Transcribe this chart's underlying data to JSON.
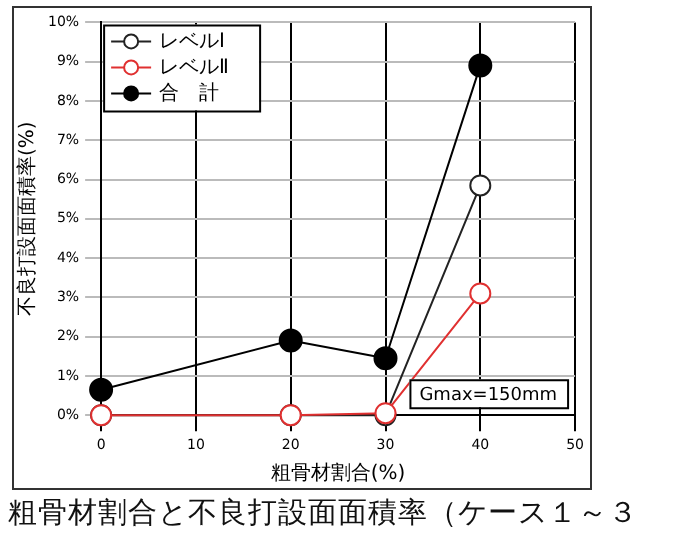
{
  "chart_data": {
    "type": "line",
    "xlabel": "粗骨材割合(%)",
    "ylabel": "不良打設面面積率(%)",
    "x": [
      0,
      20,
      30,
      40
    ],
    "series": [
      {
        "name": "レベルⅠ",
        "color": "#222222",
        "values": [
          0,
          0,
          0,
          5.85
        ]
      },
      {
        "name": "レベルⅡ",
        "color": "#e03030",
        "values": [
          0,
          0,
          0.05,
          3.1
        ]
      },
      {
        "name": "合　計",
        "color": "#000000",
        "values": [
          0.65,
          1.9,
          1.45,
          8.9
        ]
      }
    ],
    "xlim": [
      0,
      50
    ],
    "xticks": [
      0,
      10,
      20,
      30,
      40,
      50
    ],
    "ylim": [
      0,
      10
    ],
    "yticks": [
      {
        "value": 0,
        "label": "0%"
      },
      {
        "value": 1,
        "label": "1%"
      },
      {
        "value": 2,
        "label": "2%"
      },
      {
        "value": 3,
        "label": "3%"
      },
      {
        "value": 4,
        "label": "4%"
      },
      {
        "value": 5,
        "label": "5%"
      },
      {
        "value": 6,
        "label": "6%"
      },
      {
        "value": 7,
        "label": "7%"
      },
      {
        "value": 8,
        "label": "8%"
      },
      {
        "value": 9,
        "label": "9%"
      },
      {
        "value": 10,
        "label": "10%"
      }
    ],
    "grid": true,
    "legend": "top left",
    "marker": "circle",
    "line_style": "solid",
    "annotations": [
      "Gmax=150mm",
      "粗骨材割合と不良打設面面積率（ケース１～３"
    ]
  }
}
